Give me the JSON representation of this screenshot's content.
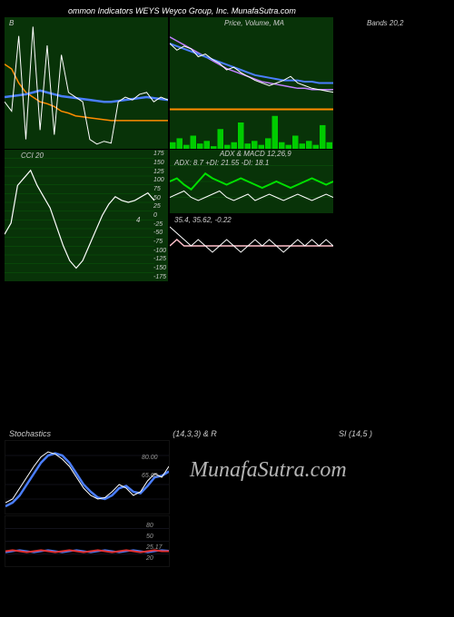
{
  "header": "ommon Indicators WEYS Weyco Group, Inc. MunafaSutra.com",
  "watermark": "MunafaSutra.com",
  "panel1": {
    "title": "B",
    "series_white": [
      50,
      40,
      120,
      10,
      130,
      20,
      110,
      15,
      100,
      60,
      55,
      50,
      10,
      5,
      8,
      6,
      50,
      55,
      52,
      58,
      60,
      50,
      55,
      52
    ],
    "series_blue": [
      55,
      56,
      57,
      58,
      60,
      62,
      60,
      58,
      56,
      55,
      54,
      53,
      52,
      51,
      50,
      50,
      51,
      52,
      53,
      54,
      55,
      54,
      53,
      52
    ],
    "series_orange": [
      90,
      85,
      70,
      60,
      55,
      50,
      48,
      45,
      40,
      38,
      35,
      34,
      33,
      32,
      31,
      30,
      30,
      30,
      30,
      30,
      30,
      30,
      30,
      30
    ],
    "colors": {
      "s1": "#ffffff",
      "s2": "#4a7eff",
      "s3": "#ff8c00"
    }
  },
  "panel2": {
    "title": "Price, Volume, MA",
    "candles": [
      80,
      75,
      78,
      76,
      70,
      72,
      68,
      65,
      60,
      62,
      58,
      55,
      52,
      50,
      48,
      50,
      52,
      55,
      50,
      48,
      46,
      45,
      44,
      43
    ],
    "ma1_blue": [
      80,
      78,
      76,
      74,
      72,
      70,
      68,
      66,
      64,
      62,
      60,
      58,
      56,
      55,
      54,
      53,
      52,
      52,
      52,
      51,
      51,
      50,
      50,
      50
    ],
    "ma2_violet": [
      85,
      82,
      79,
      76,
      73,
      70,
      67,
      64,
      61,
      59,
      57,
      55,
      53,
      51,
      50,
      49,
      48,
      47,
      46,
      46,
      45,
      45,
      45,
      45
    ],
    "ma3_orange": [
      30,
      30,
      30,
      30,
      30,
      30,
      30,
      30,
      30,
      30,
      30,
      30,
      30,
      30,
      30,
      30,
      30,
      30,
      30,
      30,
      30,
      30,
      30,
      30
    ],
    "volume": [
      5,
      8,
      3,
      10,
      4,
      6,
      2,
      15,
      3,
      5,
      20,
      4,
      6,
      3,
      8,
      25,
      5,
      3,
      10,
      4,
      6,
      3,
      18,
      5
    ],
    "colors": {
      "line": "#ffffff",
      "ma1": "#4a7eff",
      "ma2": "#c080ff",
      "ma3": "#ff8c00",
      "vol": "#00cc00"
    }
  },
  "panel3": {
    "title": "Bands 20,2"
  },
  "panel4": {
    "title_left": "CCI 20",
    "y_ticks": [
      "175",
      "150",
      "125",
      "100",
      "75",
      "50",
      "25",
      "0",
      "-25",
      "-50",
      "-75",
      "-100",
      "-125",
      "-150",
      "-175"
    ],
    "series": [
      -50,
      -20,
      80,
      100,
      120,
      80,
      50,
      20,
      -30,
      -80,
      -120,
      -140,
      -120,
      -80,
      -40,
      0,
      30,
      50,
      40,
      35,
      40,
      50,
      60,
      40
    ],
    "color": "#ffffff",
    "marker_label": "4"
  },
  "panel5": {
    "title": "ADX   & MACD 12,26,9",
    "subtitle": "ADX: 8.7 +DI: 21.55 -DI: 18.1",
    "s_green": [
      20,
      22,
      18,
      15,
      20,
      25,
      22,
      20,
      18,
      20,
      22,
      20,
      18,
      16,
      18,
      20,
      18,
      16,
      18,
      20,
      22,
      20,
      18,
      20
    ],
    "s_white": [
      10,
      12,
      14,
      10,
      8,
      10,
      12,
      14,
      10,
      8,
      10,
      12,
      8,
      10,
      12,
      10,
      8,
      10,
      12,
      10,
      8,
      10,
      12,
      10
    ],
    "colors": {
      "a": "#00e000",
      "b": "#ffffff"
    }
  },
  "panel6": {
    "title": "35.4, 35.62, -0.22",
    "s1": [
      38,
      37,
      36,
      35,
      36,
      35,
      34,
      35,
      36,
      35,
      34,
      35,
      36,
      35,
      36,
      35,
      34,
      35,
      36,
      35,
      36,
      35,
      36,
      35
    ],
    "s2": [
      35,
      36,
      35,
      35,
      35,
      35,
      35,
      35,
      35,
      35,
      35,
      35,
      35,
      35,
      35,
      35,
      35,
      35,
      35,
      35,
      35,
      35,
      35,
      35
    ],
    "colors": {
      "a": "#ffffff",
      "b": "#ffc0cb"
    }
  },
  "stoch_title": {
    "left": "Stochastics",
    "mid": "(14,3,3) & R",
    "right": "SI                       (14,5                        )"
  },
  "panel_stoch1": {
    "s_white": [
      15,
      20,
      35,
      50,
      65,
      78,
      85,
      82,
      75,
      65,
      50,
      35,
      25,
      20,
      22,
      30,
      40,
      35,
      25,
      30,
      45,
      55,
      50,
      65
    ],
    "s_blue": [
      10,
      15,
      25,
      40,
      55,
      70,
      80,
      83,
      80,
      70,
      55,
      40,
      30,
      22,
      20,
      25,
      35,
      38,
      30,
      28,
      38,
      50,
      52,
      58
    ],
    "ticks": [
      "80.00",
      "65.60"
    ],
    "colors": {
      "a": "#ffffff",
      "b": "#4a7eff"
    }
  },
  "panel_stoch2": {
    "s_red": [
      30,
      32,
      30,
      28,
      30,
      32,
      30,
      28,
      30,
      32,
      30,
      28,
      30,
      32,
      30,
      28,
      30,
      32,
      30,
      28,
      30,
      32,
      30,
      30
    ],
    "s_blue": [
      28,
      30,
      32,
      30,
      28,
      30,
      32,
      30,
      28,
      30,
      32,
      30,
      28,
      30,
      32,
      30,
      28,
      30,
      32,
      30,
      28,
      30,
      32,
      31
    ],
    "ticks": [
      "80",
      "50",
      "25.17",
      "20"
    ],
    "colors": {
      "a": "#e03030",
      "b": "#4a7eff"
    }
  }
}
